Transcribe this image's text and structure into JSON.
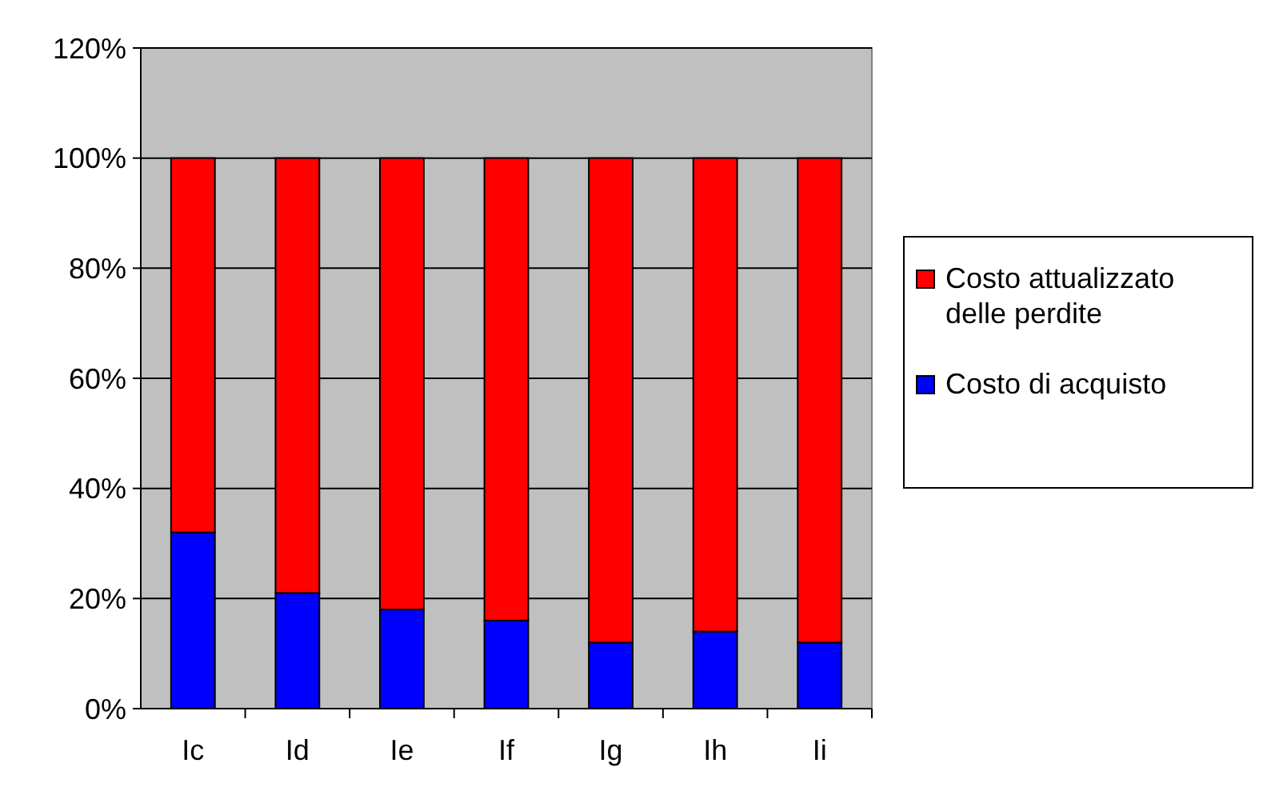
{
  "chart_data": {
    "type": "bar",
    "stacked": true,
    "categories": [
      "Ic",
      "Id",
      "Ie",
      "If",
      "Ig",
      "Ih",
      "Ii"
    ],
    "series": [
      {
        "name": "Costo di acquisto",
        "color": "#0000ff",
        "values": [
          32,
          21,
          18,
          16,
          12,
          14,
          12
        ]
      },
      {
        "name": "Costo attualizzato delle perdite",
        "color": "#ff0000",
        "values": [
          68,
          79,
          82,
          84,
          88,
          86,
          88
        ]
      }
    ],
    "ylim": [
      0,
      120
    ],
    "yticks": [
      {
        "value": 0,
        "label": "0%"
      },
      {
        "value": 20,
        "label": "20%"
      },
      {
        "value": 40,
        "label": "40%"
      },
      {
        "value": 60,
        "label": "60%"
      },
      {
        "value": 80,
        "label": "80%"
      },
      {
        "value": 100,
        "label": "100%"
      },
      {
        "value": 120,
        "label": "120%"
      }
    ],
    "grid": "y",
    "legend": "right"
  }
}
